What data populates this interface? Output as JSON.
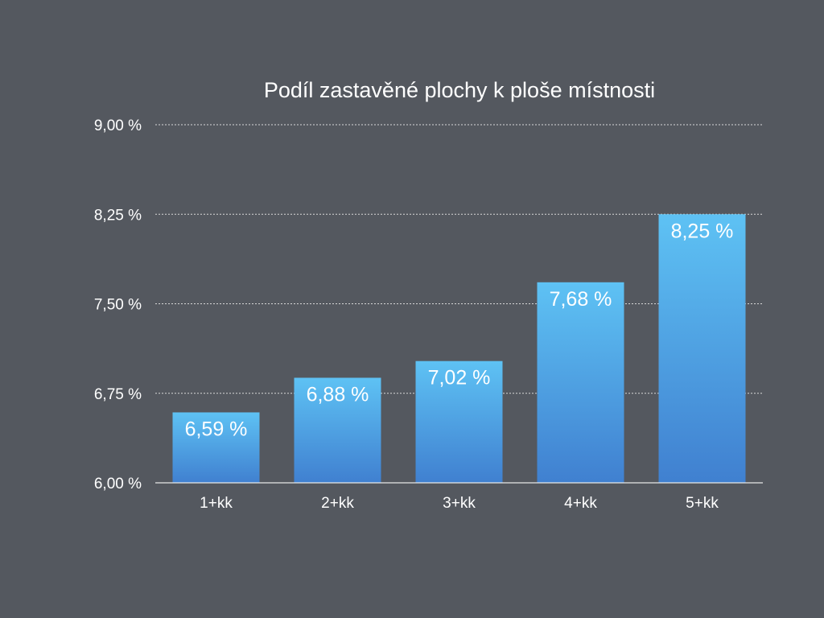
{
  "chart_data": {
    "type": "bar",
    "title": "Podíl zastavěné plochy k ploše místnosti",
    "xlabel": "",
    "ylabel": "",
    "categories": [
      "1+kk",
      "2+kk",
      "3+kk",
      "4+kk",
      "5+kk"
    ],
    "values": [
      6.59,
      6.88,
      7.02,
      7.68,
      8.25
    ],
    "value_labels": [
      "6,59 %",
      "6,88 %",
      "7,02 %",
      "7,68 %",
      "8,25 %"
    ],
    "ylim": [
      6.0,
      9.0
    ],
    "y_ticks": [
      6.0,
      6.75,
      7.5,
      8.25,
      9.0
    ],
    "y_tick_labels": [
      "6,00 %",
      "6,75 %",
      "7,50 %",
      "8,25 %",
      "9,00 %"
    ],
    "grid": true,
    "legend": "none",
    "colors": {
      "background": "#54585f",
      "bar_top": "#5ec2f4",
      "bar_bottom": "#4080d0",
      "text": "#ffffff",
      "grid": "#d8d8d8"
    }
  }
}
